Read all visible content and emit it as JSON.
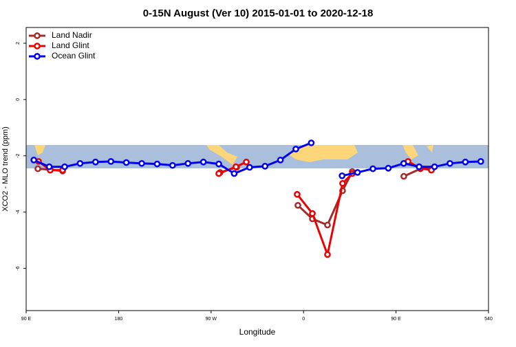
{
  "chart_data": {
    "type": "line",
    "title": "0-15N August (Ver 10)   2015-01-01 to 2020-12-18",
    "x_label": "Longitude",
    "y_label": "XCO2 - MLO trend (ppm)",
    "xlim": [
      90,
      540
    ],
    "xticks": [
      {
        "value": 90,
        "label": "90 E"
      },
      180,
      {
        "value": 270,
        "label": "90 W"
      },
      {
        "value": 360,
        "label": "0"
      },
      {
        "value": 450,
        "label": "90 E"
      },
      540
    ],
    "ylim": [
      -7.5,
      2.56
    ],
    "yticks": [
      -6,
      -4,
      -2,
      0,
      2
    ],
    "legend": "top-left",
    "series": [
      {
        "name": "Land Nadir",
        "color": "#a52a2a",
        "x": [
          101.4,
          113.4,
          125.5,
          null,
          278.8,
          294.9,
          null,
          354.5,
          368.6,
          383.3,
          398.0,
          407.4,
          null,
          457.6,
          473.7,
          485.1
        ],
        "values": [
          -2.46,
          -2.49,
          -2.54,
          null,
          -2.59,
          -2.41,
          null,
          -3.76,
          -4.24,
          -4.46,
          -3.24,
          -2.56,
          null,
          -2.73,
          -2.46,
          -2.46
        ]
      },
      {
        "name": "Land Glint",
        "color": "#ee0000",
        "x": [
          102.1,
          113.4,
          125.5,
          null,
          277.5,
          294.2,
          304.3,
          null,
          353.8,
          368.6,
          383.3,
          398.0,
          407.4,
          null,
          461.7,
          473.7,
          484.4
        ],
        "values": [
          -2.2,
          -2.51,
          -2.51,
          null,
          -2.63,
          -2.39,
          -2.22,
          null,
          -3.37,
          -4.05,
          -5.51,
          -2.98,
          -2.63,
          null,
          -2.2,
          -2.44,
          -2.51
        ]
      },
      {
        "name": "Ocean Glint",
        "color": "#0000ee",
        "x": [
          97.5,
          112.5,
          127.5,
          142.5,
          157.5,
          172.5,
          187.5,
          202.5,
          217.5,
          232.5,
          247.5,
          262.5,
          277.5,
          292.5,
          307.5,
          322.5,
          337.5,
          352.5,
          367.5,
          382.5,
          397.5,
          412.5,
          427.5,
          442.5,
          457.5,
          472.5,
          487.5,
          502.5,
          517.5,
          532.5
        ],
        "values": [
          -2.15,
          -2.39,
          -2.39,
          -2.27,
          -2.22,
          -2.2,
          -2.24,
          -2.27,
          -2.29,
          -2.34,
          -2.27,
          -2.22,
          -2.29,
          -2.63,
          -2.41,
          -2.37,
          -2.15,
          -1.76,
          -1.54,
          null,
          -2.71,
          -2.59,
          -2.46,
          -2.44,
          -2.27,
          -2.39,
          -2.39,
          -2.27,
          -2.22,
          -2.2
        ]
      }
    ]
  }
}
